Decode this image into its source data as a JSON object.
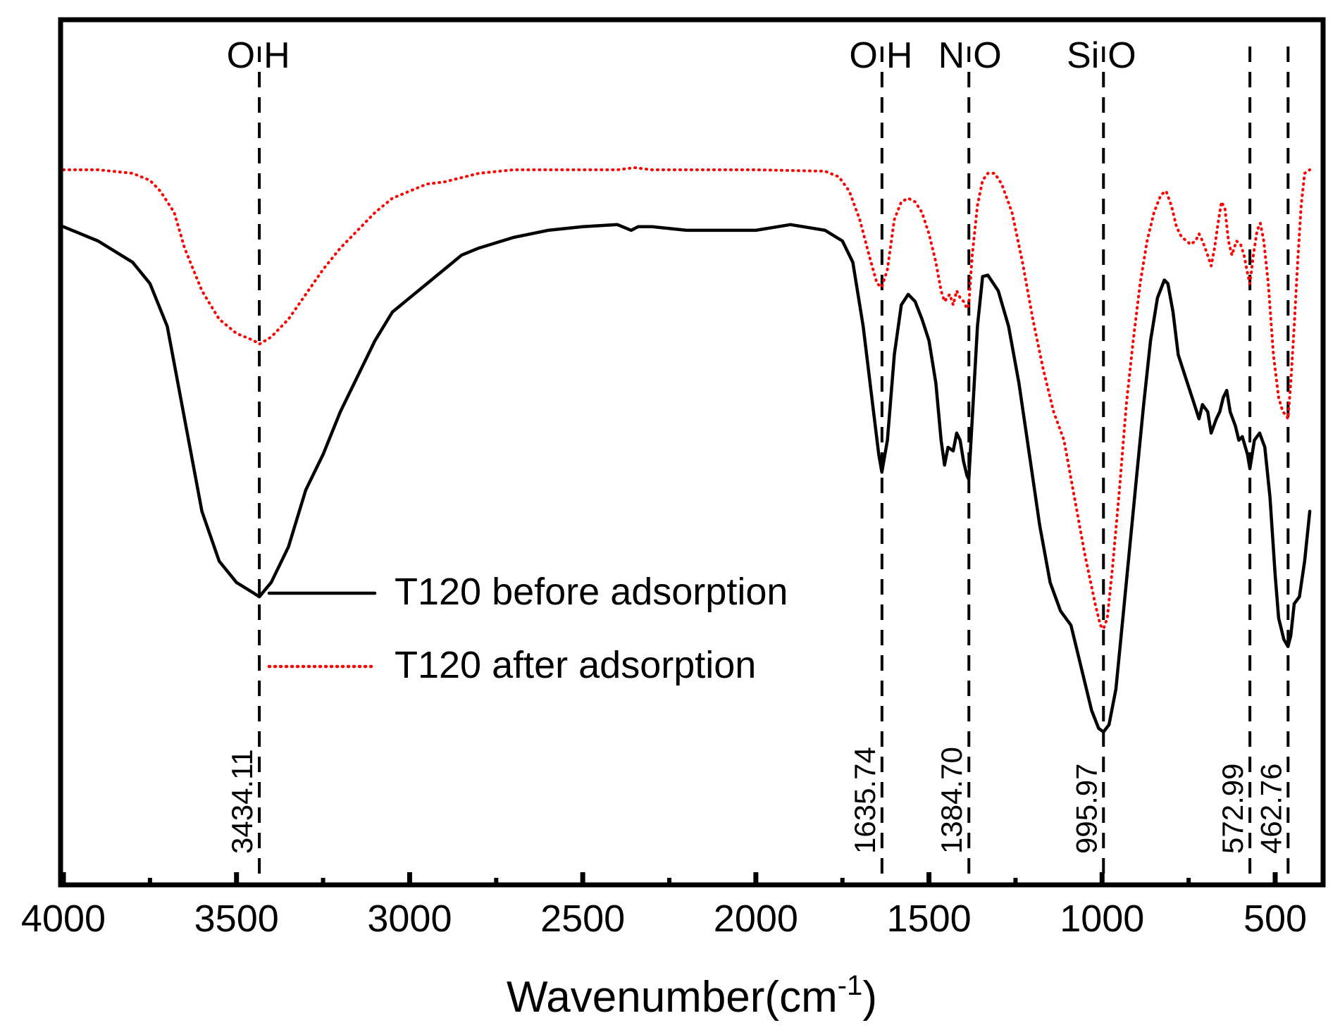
{
  "chart_data": {
    "type": "line",
    "title": "",
    "xlabel": "Wavenumber(cm",
    "xlabel_sup": "-1",
    "xlabel_close": ")",
    "ylabel": "",
    "xlim": [
      4000,
      400
    ],
    "ylim": [
      0,
      100
    ],
    "xticks": [
      4000,
      3500,
      3000,
      2500,
      2000,
      1500,
      1000,
      500
    ],
    "xtick_labels": [
      "4000",
      "3500",
      "3000",
      "2500",
      "2000",
      "1500",
      "1000",
      "500"
    ],
    "minor_xticks": [
      3750,
      3250,
      2750,
      2250,
      1750,
      1250,
      750
    ],
    "legend_position": "center",
    "series": [
      {
        "name": "T120 before adsorption",
        "color": "#000000",
        "style": "solid",
        "points": [
          [
            4000,
            82
          ],
          [
            3900,
            80
          ],
          [
            3800,
            77
          ],
          [
            3750,
            74
          ],
          [
            3700,
            68
          ],
          [
            3650,
            55
          ],
          [
            3600,
            42
          ],
          [
            3550,
            35
          ],
          [
            3500,
            32
          ],
          [
            3450,
            30.5
          ],
          [
            3434,
            30
          ],
          [
            3400,
            32
          ],
          [
            3350,
            37
          ],
          [
            3300,
            45
          ],
          [
            3250,
            50
          ],
          [
            3200,
            56
          ],
          [
            3150,
            61
          ],
          [
            3100,
            66
          ],
          [
            3050,
            70
          ],
          [
            3000,
            72
          ],
          [
            2950,
            74
          ],
          [
            2900,
            76
          ],
          [
            2850,
            78
          ],
          [
            2800,
            79
          ],
          [
            2700,
            80.5
          ],
          [
            2600,
            81.5
          ],
          [
            2500,
            82
          ],
          [
            2400,
            82.3
          ],
          [
            2360,
            81.5
          ],
          [
            2340,
            82
          ],
          [
            2300,
            82
          ],
          [
            2200,
            81.5
          ],
          [
            2100,
            81.5
          ],
          [
            2000,
            81.5
          ],
          [
            1900,
            82.3
          ],
          [
            1800,
            81.5
          ],
          [
            1750,
            80
          ],
          [
            1720,
            77
          ],
          [
            1690,
            68
          ],
          [
            1660,
            56
          ],
          [
            1645,
            50
          ],
          [
            1636,
            47.5
          ],
          [
            1620,
            52
          ],
          [
            1600,
            64
          ],
          [
            1580,
            71
          ],
          [
            1560,
            72.5
          ],
          [
            1540,
            71.5
          ],
          [
            1520,
            69
          ],
          [
            1500,
            66
          ],
          [
            1480,
            60
          ],
          [
            1465,
            52
          ],
          [
            1455,
            48.5
          ],
          [
            1445,
            51
          ],
          [
            1430,
            50.5
          ],
          [
            1420,
            53
          ],
          [
            1410,
            52
          ],
          [
            1400,
            49
          ],
          [
            1390,
            47
          ],
          [
            1385,
            46.5
          ],
          [
            1375,
            55
          ],
          [
            1360,
            68
          ],
          [
            1345,
            75
          ],
          [
            1330,
            75.2
          ],
          [
            1300,
            73
          ],
          [
            1270,
            68
          ],
          [
            1240,
            60
          ],
          [
            1210,
            50
          ],
          [
            1180,
            40
          ],
          [
            1150,
            32
          ],
          [
            1120,
            28
          ],
          [
            1090,
            26
          ],
          [
            1060,
            20
          ],
          [
            1030,
            14
          ],
          [
            1010,
            11.5
          ],
          [
            996,
            11
          ],
          [
            980,
            12
          ],
          [
            960,
            17
          ],
          [
            940,
            27
          ],
          [
            920,
            37
          ],
          [
            900,
            47
          ],
          [
            880,
            57
          ],
          [
            860,
            66
          ],
          [
            840,
            72
          ],
          [
            820,
            74.5
          ],
          [
            810,
            74
          ],
          [
            795,
            70
          ],
          [
            780,
            64
          ],
          [
            760,
            61
          ],
          [
            740,
            58
          ],
          [
            720,
            55
          ],
          [
            710,
            57
          ],
          [
            695,
            56
          ],
          [
            685,
            53
          ],
          [
            670,
            55
          ],
          [
            660,
            56
          ],
          [
            650,
            58
          ],
          [
            640,
            59
          ],
          [
            630,
            56
          ],
          [
            615,
            54
          ],
          [
            605,
            52
          ],
          [
            595,
            52.5
          ],
          [
            580,
            50
          ],
          [
            573,
            48
          ],
          [
            560,
            52
          ],
          [
            545,
            53
          ],
          [
            530,
            51
          ],
          [
            515,
            44
          ],
          [
            500,
            33
          ],
          [
            490,
            27
          ],
          [
            475,
            24
          ],
          [
            463,
            23
          ],
          [
            455,
            24.5
          ],
          [
            445,
            29
          ],
          [
            430,
            30
          ],
          [
            415,
            35
          ],
          [
            400,
            42
          ]
        ]
      },
      {
        "name": "T120 after adsorption",
        "color": "#ff0000",
        "style": "dotted",
        "points": [
          [
            4000,
            90
          ],
          [
            3900,
            90
          ],
          [
            3800,
            89.5
          ],
          [
            3750,
            88.5
          ],
          [
            3720,
            87
          ],
          [
            3680,
            84
          ],
          [
            3650,
            79
          ],
          [
            3600,
            73
          ],
          [
            3550,
            69
          ],
          [
            3500,
            67
          ],
          [
            3450,
            66
          ],
          [
            3434,
            65.5
          ],
          [
            3400,
            66.5
          ],
          [
            3350,
            69
          ],
          [
            3300,
            72.5
          ],
          [
            3250,
            76
          ],
          [
            3200,
            79
          ],
          [
            3150,
            81.5
          ],
          [
            3100,
            84
          ],
          [
            3050,
            86
          ],
          [
            3000,
            87
          ],
          [
            2950,
            88
          ],
          [
            2900,
            88.3
          ],
          [
            2800,
            89.5
          ],
          [
            2700,
            90
          ],
          [
            2500,
            90
          ],
          [
            2400,
            90
          ],
          [
            2350,
            90.3
          ],
          [
            2300,
            90
          ],
          [
            2000,
            90
          ],
          [
            1800,
            89.8
          ],
          [
            1760,
            89
          ],
          [
            1730,
            87
          ],
          [
            1700,
            83
          ],
          [
            1670,
            77.5
          ],
          [
            1650,
            74
          ],
          [
            1636,
            73.5
          ],
          [
            1620,
            76
          ],
          [
            1600,
            83
          ],
          [
            1580,
            85.5
          ],
          [
            1560,
            86
          ],
          [
            1540,
            85.5
          ],
          [
            1520,
            84
          ],
          [
            1500,
            81
          ],
          [
            1480,
            77
          ],
          [
            1465,
            73
          ],
          [
            1455,
            71.5
          ],
          [
            1440,
            72.5
          ],
          [
            1430,
            71
          ],
          [
            1420,
            73
          ],
          [
            1410,
            72
          ],
          [
            1400,
            71.5
          ],
          [
            1390,
            70.5
          ],
          [
            1385,
            71
          ],
          [
            1375,
            78
          ],
          [
            1360,
            85
          ],
          [
            1345,
            88.5
          ],
          [
            1330,
            89.5
          ],
          [
            1310,
            89.5
          ],
          [
            1290,
            88
          ],
          [
            1260,
            84
          ],
          [
            1230,
            77
          ],
          [
            1200,
            69
          ],
          [
            1170,
            62
          ],
          [
            1140,
            56
          ],
          [
            1110,
            52
          ],
          [
            1080,
            44
          ],
          [
            1050,
            36
          ],
          [
            1020,
            29
          ],
          [
            1005,
            26
          ],
          [
            996,
            25.5
          ],
          [
            985,
            27
          ],
          [
            970,
            34
          ],
          [
            950,
            45
          ],
          [
            930,
            57
          ],
          [
            910,
            66
          ],
          [
            890,
            74
          ],
          [
            870,
            80
          ],
          [
            850,
            84
          ],
          [
            830,
            86.5
          ],
          [
            815,
            87
          ],
          [
            800,
            85
          ],
          [
            785,
            82
          ],
          [
            770,
            80.5
          ],
          [
            755,
            80
          ],
          [
            745,
            79.5
          ],
          [
            730,
            80
          ],
          [
            720,
            81
          ],
          [
            710,
            80
          ],
          [
            695,
            78
          ],
          [
            685,
            76.5
          ],
          [
            675,
            79
          ],
          [
            665,
            82.5
          ],
          [
            655,
            85.5
          ],
          [
            645,
            84.5
          ],
          [
            635,
            80
          ],
          [
            625,
            78
          ],
          [
            612,
            80
          ],
          [
            600,
            79.5
          ],
          [
            590,
            78
          ],
          [
            578,
            75
          ],
          [
            573,
            74
          ],
          [
            563,
            78
          ],
          [
            552,
            81.5
          ],
          [
            543,
            82.5
          ],
          [
            533,
            80
          ],
          [
            520,
            74
          ],
          [
            505,
            64
          ],
          [
            490,
            58
          ],
          [
            478,
            56
          ],
          [
            468,
            55.5
          ],
          [
            463,
            55
          ],
          [
            455,
            60
          ],
          [
            445,
            68
          ],
          [
            435,
            77
          ],
          [
            425,
            85
          ],
          [
            415,
            89.5
          ],
          [
            400,
            90
          ]
        ]
      }
    ],
    "peak_markers": [
      {
        "x": 3434.11,
        "label": "3434.11"
      },
      {
        "x": 1635.74,
        "label": "1635.74"
      },
      {
        "x": 1384.7,
        "label": "1384.70"
      },
      {
        "x": 995.97,
        "label": "995.97"
      },
      {
        "x": 572.99,
        "label": "572.99"
      },
      {
        "x": 462.76,
        "label": "462.76"
      }
    ],
    "group_labels": [
      {
        "x": 3434.11,
        "left": "O",
        "right": "H"
      },
      {
        "x": 1635.74,
        "left": "O",
        "right": "H"
      },
      {
        "x": 1384.7,
        "left": "N",
        "right": "O"
      },
      {
        "x": 995.97,
        "left": "Si",
        "right": "O"
      }
    ]
  }
}
